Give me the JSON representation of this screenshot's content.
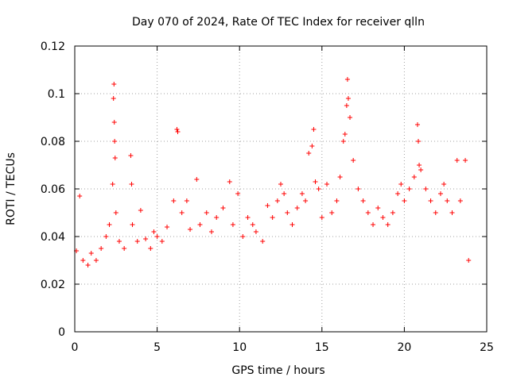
{
  "chart_data": {
    "type": "scatter",
    "title": "Day 070 of 2024, Rate Of TEC Index for receiver qlln",
    "xlabel": "GPS time / hours",
    "ylabel": "ROTI / TECUs",
    "xlim": [
      0,
      25
    ],
    "ylim": [
      0,
      0.12
    ],
    "xticks": [
      0,
      5,
      10,
      15,
      20,
      25
    ],
    "yticks": [
      0,
      0.02,
      0.04,
      0.06,
      0.08,
      0.1,
      0.12
    ],
    "xtick_labels": [
      "0",
      "5",
      "10",
      "15",
      "20",
      "25"
    ],
    "ytick_labels": [
      "0",
      "0.02",
      "0.04",
      "0.06",
      "0.08",
      "0.1",
      "0.12"
    ],
    "grid": true,
    "marker": "+",
    "color": "#ff0000",
    "series": [
      {
        "name": "ROTI",
        "x": [
          0.1,
          0.3,
          0.5,
          0.8,
          1.0,
          1.3,
          1.6,
          1.9,
          2.1,
          2.3,
          2.35,
          2.38,
          2.4,
          2.42,
          2.45,
          2.5,
          2.7,
          3.0,
          3.4,
          3.45,
          3.5,
          3.8,
          4.0,
          4.3,
          4.6,
          4.8,
          5.0,
          5.3,
          5.6,
          6.0,
          6.2,
          6.25,
          6.5,
          6.8,
          7.0,
          7.4,
          7.6,
          8.0,
          8.3,
          8.6,
          9.0,
          9.4,
          9.6,
          9.9,
          10.2,
          10.5,
          10.8,
          11.0,
          11.4,
          11.7,
          12.0,
          12.3,
          12.5,
          12.7,
          12.9,
          13.2,
          13.5,
          13.8,
          14.0,
          14.2,
          14.4,
          14.5,
          14.6,
          14.8,
          15.0,
          15.3,
          15.6,
          15.9,
          16.1,
          16.3,
          16.4,
          16.5,
          16.55,
          16.6,
          16.7,
          16.9,
          17.2,
          17.5,
          17.8,
          18.1,
          18.4,
          18.7,
          19.0,
          19.3,
          19.6,
          19.8,
          20.0,
          20.3,
          20.6,
          20.8,
          20.85,
          20.9,
          21.0,
          21.3,
          21.6,
          21.9,
          22.2,
          22.4,
          22.6,
          22.9,
          23.2,
          23.4,
          23.7,
          23.9
        ],
        "y": [
          0.034,
          0.057,
          0.03,
          0.028,
          0.033,
          0.03,
          0.035,
          0.04,
          0.045,
          0.062,
          0.098,
          0.104,
          0.088,
          0.08,
          0.073,
          0.05,
          0.038,
          0.035,
          0.074,
          0.062,
          0.045,
          0.038,
          0.051,
          0.039,
          0.035,
          0.042,
          0.04,
          0.038,
          0.044,
          0.055,
          0.085,
          0.084,
          0.05,
          0.055,
          0.043,
          0.064,
          0.045,
          0.05,
          0.042,
          0.048,
          0.052,
          0.063,
          0.045,
          0.058,
          0.04,
          0.048,
          0.045,
          0.042,
          0.038,
          0.053,
          0.048,
          0.055,
          0.062,
          0.058,
          0.05,
          0.045,
          0.052,
          0.058,
          0.055,
          0.075,
          0.078,
          0.085,
          0.063,
          0.06,
          0.048,
          0.062,
          0.05,
          0.055,
          0.065,
          0.08,
          0.083,
          0.095,
          0.106,
          0.098,
          0.09,
          0.072,
          0.06,
          0.055,
          0.05,
          0.045,
          0.052,
          0.048,
          0.045,
          0.05,
          0.058,
          0.062,
          0.055,
          0.06,
          0.065,
          0.087,
          0.08,
          0.07,
          0.068,
          0.06,
          0.055,
          0.05,
          0.058,
          0.062,
          0.055,
          0.05,
          0.072,
          0.055,
          0.072,
          0.03
        ]
      }
    ]
  }
}
